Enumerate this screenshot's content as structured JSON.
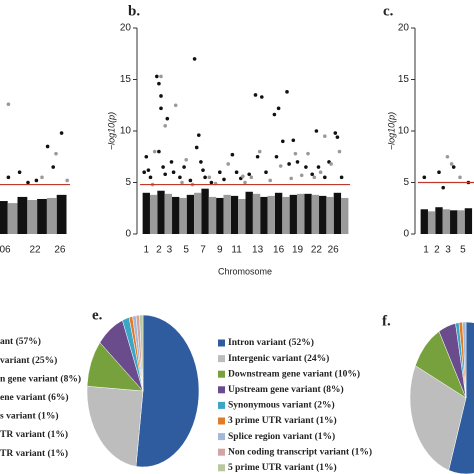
{
  "chart_data": [
    {
      "type": "manhattan",
      "xlim": [
        0,
        100
      ],
      "ylim": [
        0,
        20
      ],
      "xticks": [
        {
          "value": 76.8,
          "label": "06"
        },
        {
          "value": 87.5,
          "label": "22"
        },
        {
          "value": 96.4,
          "label": "26"
        }
      ],
      "hline": {
        "value": 4.8,
        "color": "#c0392b"
      },
      "series": [
        {
          "type": "bar",
          "color": "#111111",
          "x": [
            76,
            83,
            90,
            97
          ],
          "values": [
            3.2,
            3.6,
            3.4,
            3.8
          ]
        },
        {
          "type": "bar",
          "color": "#9a9a9a",
          "x": [
            79.5,
            86.5,
            93.5
          ],
          "values": [
            3.0,
            3.3,
            3.5
          ]
        },
        {
          "type": "scatter",
          "color": "#111111",
          "x": [
            78,
            82,
            85,
            88,
            92,
            94,
            97
          ],
          "values": [
            5.5,
            6.0,
            5.0,
            5.2,
            8.5,
            6.5,
            9.8
          ]
        },
        {
          "type": "scatter",
          "color": "#9a9a9a",
          "x": [
            78,
            90,
            95,
            99
          ],
          "values": [
            12.6,
            5.5,
            7.8,
            5.2
          ]
        }
      ]
    },
    {
      "type": "manhattan",
      "title": "b.",
      "ylabel": "−log10(p)",
      "xlabel": "Chromosome",
      "xlim": [
        0,
        100
      ],
      "ylim": [
        0,
        20
      ],
      "yticks": [
        0,
        5,
        10,
        15,
        20
      ],
      "xticks": [
        {
          "value": 3,
          "label": "1"
        },
        {
          "value": 9,
          "label": "2"
        },
        {
          "value": 14,
          "label": "3"
        },
        {
          "value": 22,
          "label": "5"
        },
        {
          "value": 30,
          "label": "7"
        },
        {
          "value": 38,
          "label": "9"
        },
        {
          "value": 46,
          "label": "11"
        },
        {
          "value": 56,
          "label": "13"
        },
        {
          "value": 66,
          "label": "16"
        },
        {
          "value": 75,
          "label": "19"
        },
        {
          "value": 84,
          "label": "22"
        },
        {
          "value": 92,
          "label": "26"
        }
      ],
      "hline": {
        "value": 4.8,
        "color": "#c0392b"
      },
      "series": [
        {
          "type": "bar",
          "color": "#111111",
          "x": [
            3,
            10,
            17,
            24,
            31,
            38,
            45,
            52,
            59,
            66,
            73,
            80,
            87,
            94
          ],
          "values": [
            4.0,
            4.2,
            3.6,
            3.8,
            4.4,
            3.5,
            3.7,
            4.1,
            3.6,
            4.0,
            3.8,
            3.9,
            3.7,
            4.0
          ]
        },
        {
          "type": "bar",
          "color": "#9a9a9a",
          "x": [
            6.5,
            13.5,
            20.5,
            27.5,
            34.5,
            41.5,
            48.5,
            55.5,
            62.5,
            69.5,
            76.5,
            83.5,
            90.5,
            97.5
          ],
          "values": [
            3.8,
            3.9,
            3.5,
            4.0,
            3.6,
            3.8,
            3.4,
            3.9,
            3.7,
            3.6,
            3.9,
            3.8,
            3.6,
            3.5
          ]
        },
        {
          "type": "scatter",
          "color": "#111111",
          "x": [
            2,
            3,
            4,
            5,
            8,
            9,
            10,
            10,
            9,
            11,
            12,
            13,
            15,
            16,
            19,
            21,
            24,
            26,
            27,
            28,
            29,
            30,
            31,
            34,
            38,
            40,
            44,
            46,
            48,
            52,
            55,
            56,
            58,
            60,
            64,
            65,
            66,
            68,
            70,
            71,
            73,
            75,
            79,
            82,
            84,
            85,
            88,
            90,
            93,
            94,
            96
          ],
          "values": [
            6,
            7.5,
            6.2,
            5.5,
            15.3,
            14.6,
            13.4,
            12.2,
            8,
            6.5,
            5.8,
            11.2,
            7,
            6,
            5.5,
            6.5,
            5.2,
            17,
            8.4,
            9.6,
            7,
            6.2,
            5.5,
            5,
            6,
            5.3,
            7.7,
            6,
            5.4,
            5.8,
            13.5,
            7.5,
            13.3,
            6,
            11.6,
            7.5,
            12.2,
            9,
            13.8,
            6.8,
            9.1,
            7,
            6.5,
            5.8,
            10,
            6.5,
            5.5,
            7,
            9.8,
            9.4,
            5.5
          ]
        },
        {
          "type": "scatter",
          "color": "#9a9a9a",
          "x": [
            6,
            7,
            10,
            12,
            17,
            20,
            22,
            25,
            33,
            36,
            42,
            49,
            50,
            53,
            57,
            62,
            67,
            72,
            74,
            77,
            80,
            83,
            86,
            88,
            91,
            95
          ],
          "values": [
            4.8,
            8,
            15.3,
            10.5,
            12.5,
            5,
            7.2,
            4.8,
            5.5,
            4.9,
            6.8,
            5.6,
            5,
            5.5,
            8,
            5.2,
            6.6,
            5.4,
            7.8,
            5.7,
            7.8,
            5.5,
            6,
            9.5,
            6.8,
            8
          ]
        }
      ]
    },
    {
      "type": "manhattan",
      "title": "c.",
      "ylabel": "−log10(p)",
      "xlim": [
        0,
        100
      ],
      "ylim": [
        0,
        20
      ],
      "yticks": [
        0,
        5,
        10,
        15,
        20
      ],
      "xticks": [
        {
          "value": 3.8,
          "label": "1"
        },
        {
          "value": 9,
          "label": "2"
        },
        {
          "value": 14.3,
          "label": "3"
        },
        {
          "value": 21.4,
          "label": "5"
        }
      ],
      "hline": {
        "value": 5,
        "color": "#c0392b"
      },
      "series": [
        {
          "type": "bar",
          "color": "#111111",
          "x": [
            3,
            10,
            17,
            24
          ],
          "values": [
            2.4,
            2.6,
            2.3,
            2.5
          ]
        },
        {
          "type": "bar",
          "color": "#9a9a9a",
          "x": [
            6.5,
            13.5,
            20.5
          ],
          "values": [
            2.2,
            2.4,
            2.3
          ]
        },
        {
          "type": "scatter",
          "color": "#111111",
          "x": [
            3,
            10,
            12,
            17,
            24
          ],
          "values": [
            5.5,
            6,
            4.5,
            6.5,
            5
          ]
        },
        {
          "type": "scatter",
          "color": "#9a9a9a",
          "x": [
            14,
            16,
            20
          ],
          "values": [
            7.5,
            6.8,
            5.5
          ]
        }
      ]
    },
    {
      "type": "pie",
      "categories": [
        "ant (57%)",
        "variant (25%)",
        "n gene variant (8%)",
        "ene variant (6%)",
        "s variant (1%)",
        "TR variant (1%)",
        "TR variant (1%)"
      ]
    },
    {
      "type": "pie",
      "title": "e.",
      "categories": [
        "Intron variant (52%)",
        "Intergenic variant (24%)",
        "Downstream gene variant (10%)",
        "Upstream gene variant (8%)",
        "Synonymous variant (2%)",
        "3 prime UTR variant (1%)",
        "Splice region variant (1%)",
        "Non coding transcript variant (1%)",
        "5 prime UTR variant (1%)"
      ],
      "values": [
        52,
        24,
        10,
        8,
        2,
        1,
        1,
        1,
        1
      ],
      "colors": [
        "#2f5c9e",
        "#bdbdbd",
        "#77a13d",
        "#6a4b8b",
        "#3ba6c6",
        "#e07b27",
        "#9fb8dc",
        "#d6a3a3",
        "#b9c99f"
      ]
    },
    {
      "type": "pie",
      "title": "f.",
      "values": [
        55,
        27,
        10,
        5,
        1,
        1,
        1
      ],
      "colors": [
        "#2f5c9e",
        "#bdbdbd",
        "#77a13d",
        "#6a4b8b",
        "#3ba6c6",
        "#e07b27",
        "#9fb8dc"
      ]
    }
  ]
}
